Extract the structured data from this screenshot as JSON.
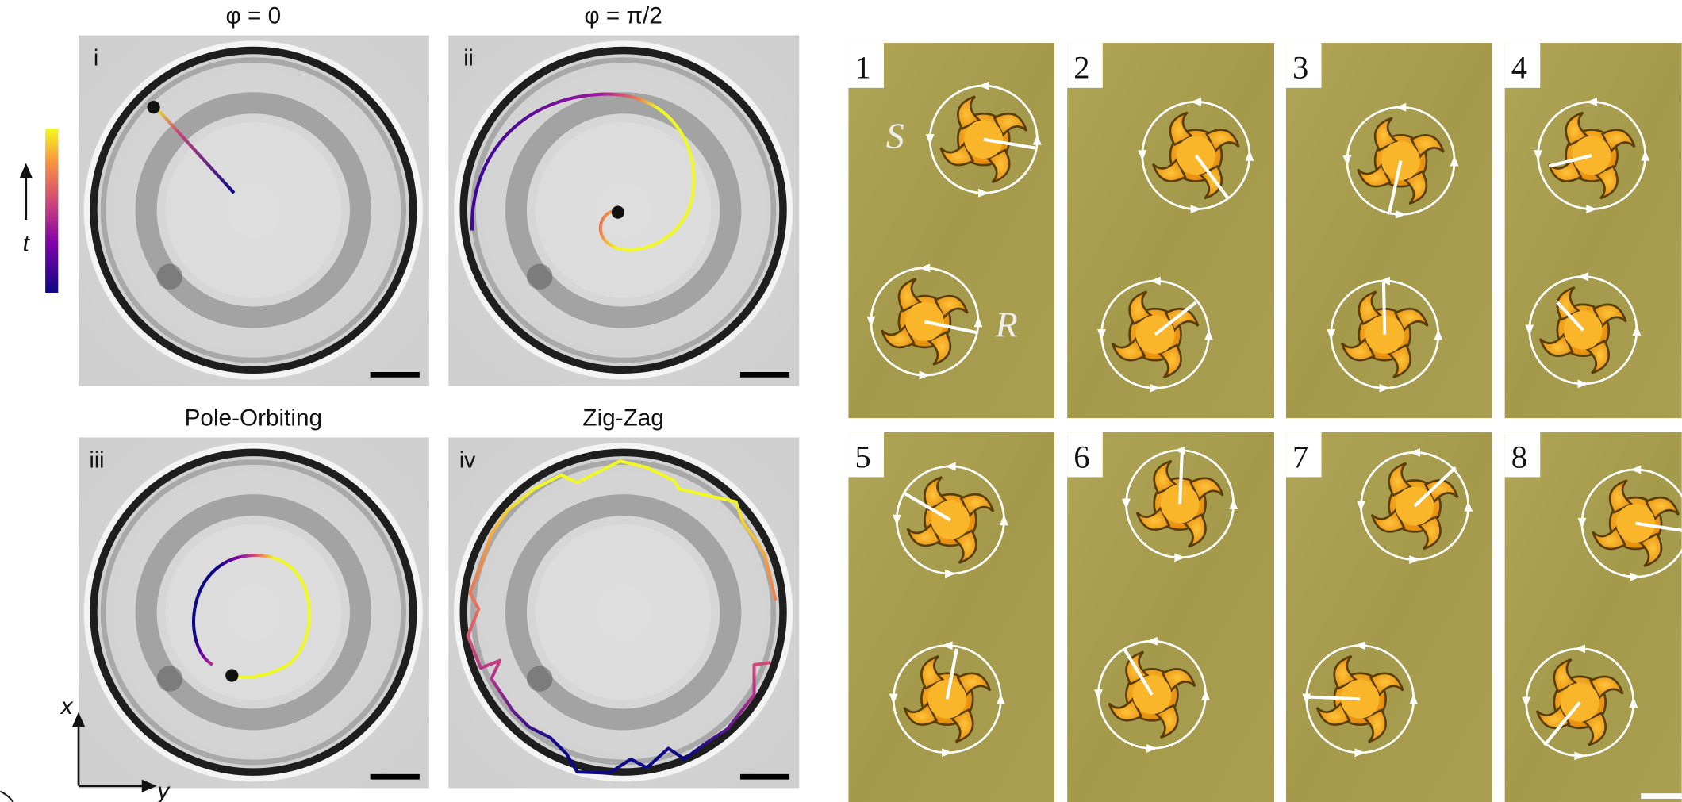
{
  "left": {
    "panels": [
      {
        "title": "φ = 0",
        "label": "i"
      },
      {
        "title": "φ = π/2",
        "label": "ii"
      },
      {
        "title": "Pole-Orbiting",
        "label": "iii"
      },
      {
        "title": "Zig-Zag",
        "label": "iv"
      }
    ],
    "colorbar_label": "t",
    "axes": {
      "x": "x",
      "y": "y"
    }
  },
  "right": {
    "frames": [
      "1",
      "2",
      "3",
      "4",
      "5",
      "6",
      "7",
      "8"
    ],
    "annotations": [
      "S",
      "R"
    ]
  }
}
